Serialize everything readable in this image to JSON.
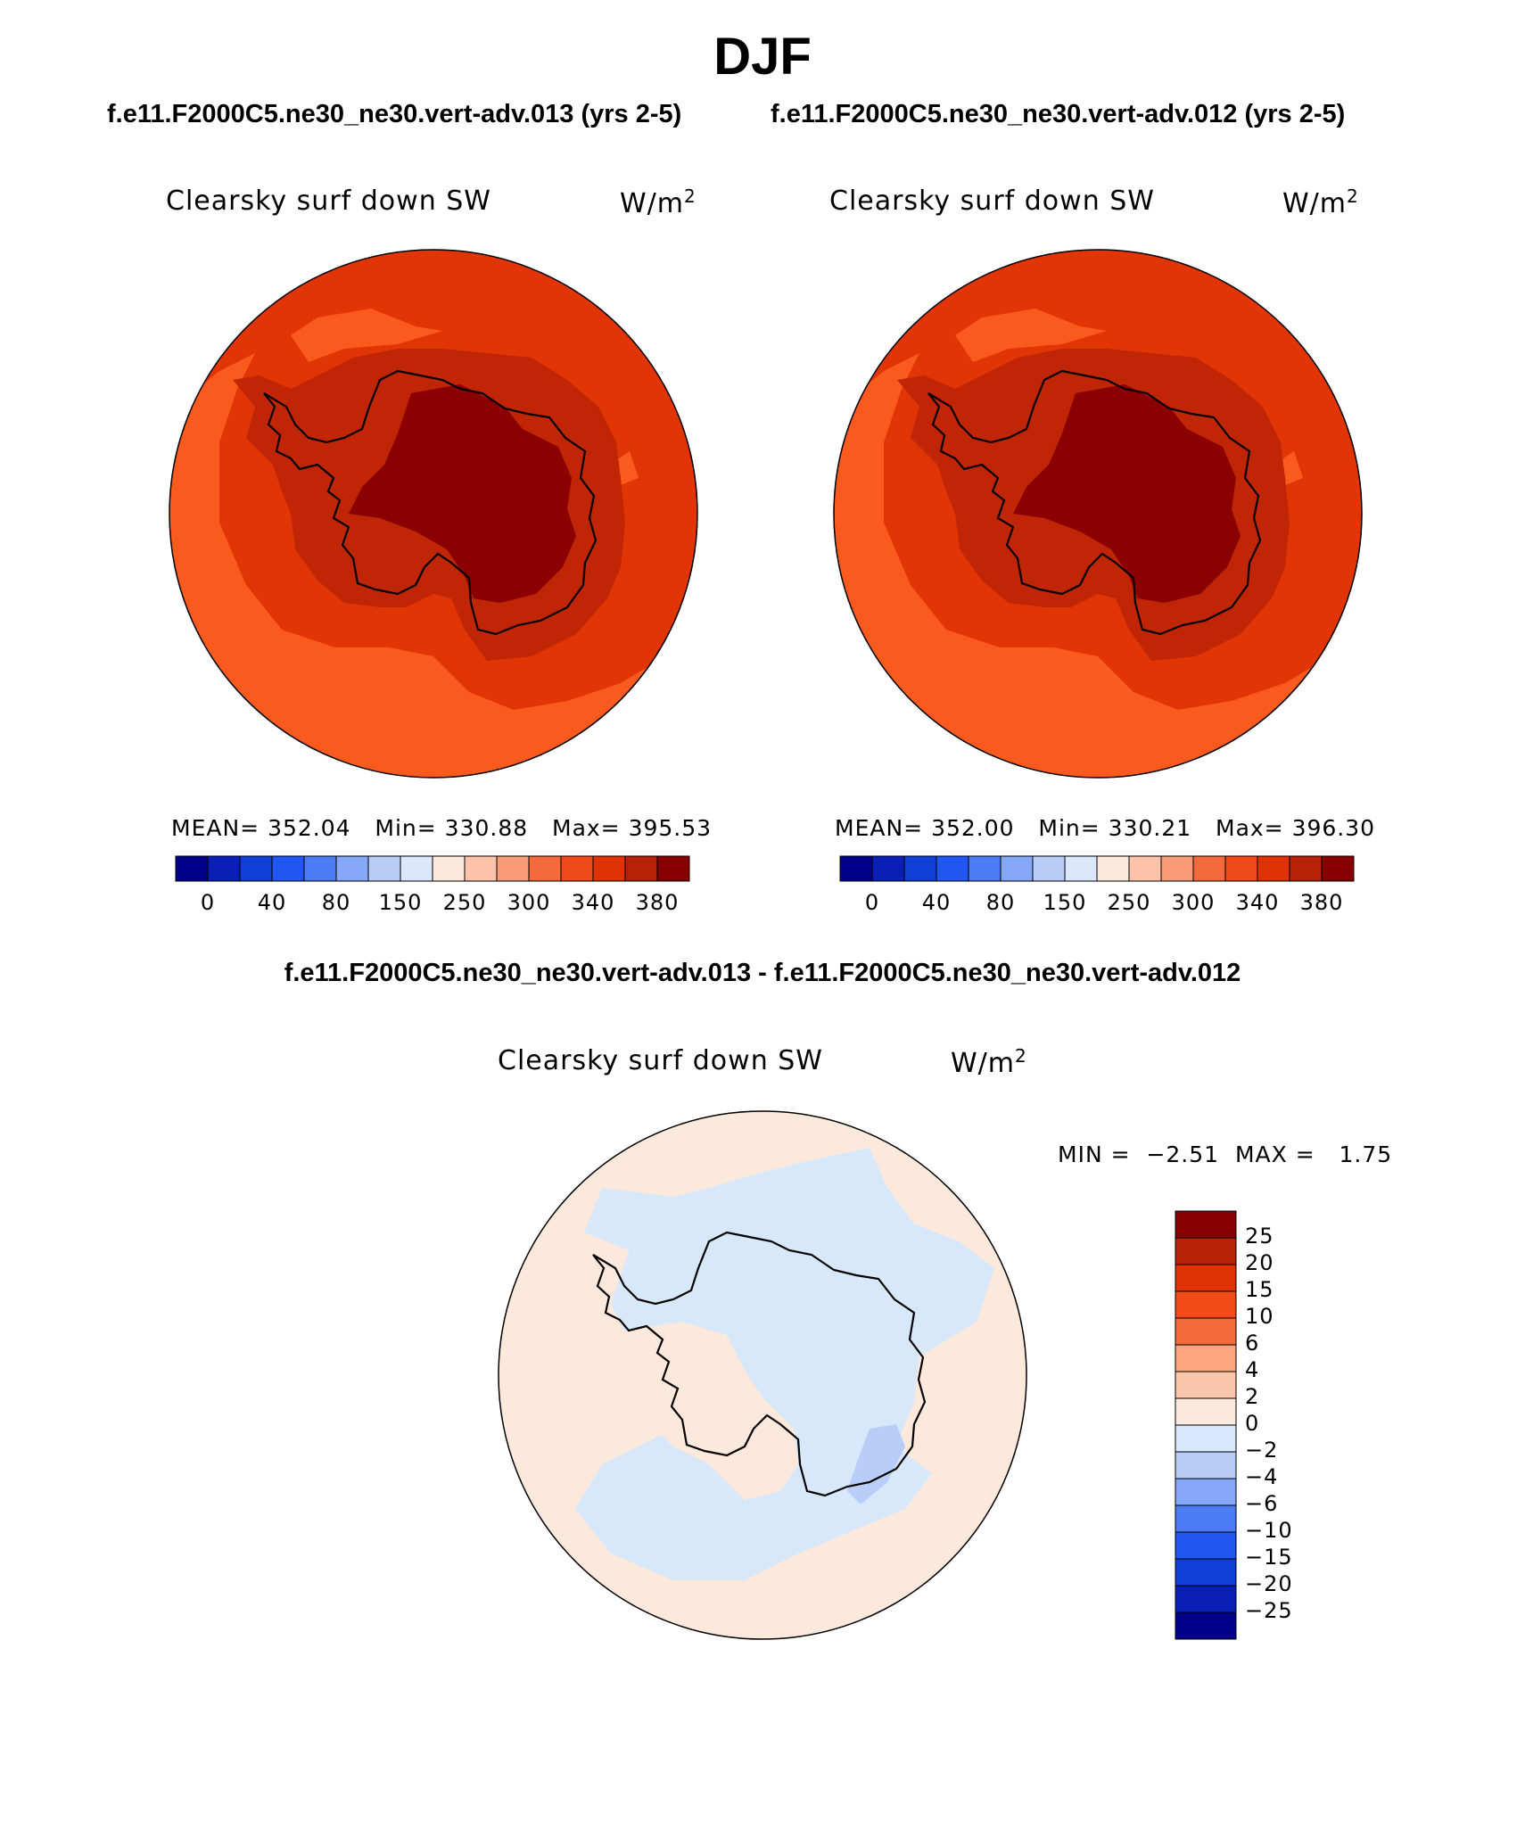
{
  "header": {
    "season": "DJF",
    "case_a": "f.e11.F2000C5.ne30_ne30.vert-adv.013 (yrs 2-5)",
    "case_b": "f.e11.F2000C5.ne30_ne30.vert-adv.012 (yrs 2-5)",
    "diff_title": "f.e11.F2000C5.ne30_ne30.vert-adv.013 - f.e11.F2000C5.ne30_ne30.vert-adv.012"
  },
  "panels": [
    {
      "variable": "Clearsky surf down SW",
      "units": "W/m",
      "units_exp": "2",
      "stats": {
        "mean_label": "MEAN=",
        "mean": "352.04",
        "min_label": "Min=",
        "min": "330.88",
        "max_label": "Max=",
        "max": "395.53"
      }
    },
    {
      "variable": "Clearsky surf down SW",
      "units": "W/m",
      "units_exp": "2",
      "stats": {
        "mean_label": "MEAN=",
        "mean": "352.00",
        "min_label": "Min=",
        "min": "330.21",
        "max_label": "Max=",
        "max": "396.30"
      }
    },
    {
      "variable": "Clearsky surf down SW",
      "units": "W/m",
      "units_exp": "2",
      "stats": {
        "min_label": "MIN =",
        "min": "−2.51",
        "max_label": "MAX =",
        "max": "1.75"
      }
    }
  ],
  "colorbar_main": {
    "colors": [
      "#00008b",
      "#0a1fb5",
      "#0f3fd6",
      "#2256f2",
      "#4b7cf5",
      "#86a6f7",
      "#b8cdf8",
      "#dbe8fb",
      "#fde9dc",
      "#fcc3aa",
      "#f99b77",
      "#f56a3c",
      "#ef4a18",
      "#e03305",
      "#b52205",
      "#870000"
    ],
    "labels": [
      "0",
      "40",
      "80",
      "150",
      "250",
      "300",
      "340",
      "380"
    ]
  },
  "colorbar_diff": {
    "colors": [
      "#870000",
      "#b52205",
      "#e03305",
      "#f44a18",
      "#f56a3c",
      "#fca680",
      "#fcc6ad",
      "#fde9dc",
      "#d8e7fb",
      "#b8cdf8",
      "#86a6f7",
      "#4b7cf5",
      "#2256f2",
      "#0f3fd6",
      "#0a1fb5",
      "#00008b"
    ],
    "labels": [
      "25",
      "20",
      "15",
      "10",
      "6",
      "4",
      "2",
      "0",
      "−2",
      "−4",
      "−6",
      "−10",
      "−15",
      "−20",
      "−25"
    ]
  },
  "map_colors": {
    "ocean_main": "#e23506",
    "ocean_low": "#fb5a1e",
    "coast_band": "#c02505",
    "plateau": "#8b0000",
    "diff_positive": "#fde9dc",
    "diff_negative": "#d8e8fb",
    "diff_strong_negative": "#b8cdf8"
  }
}
